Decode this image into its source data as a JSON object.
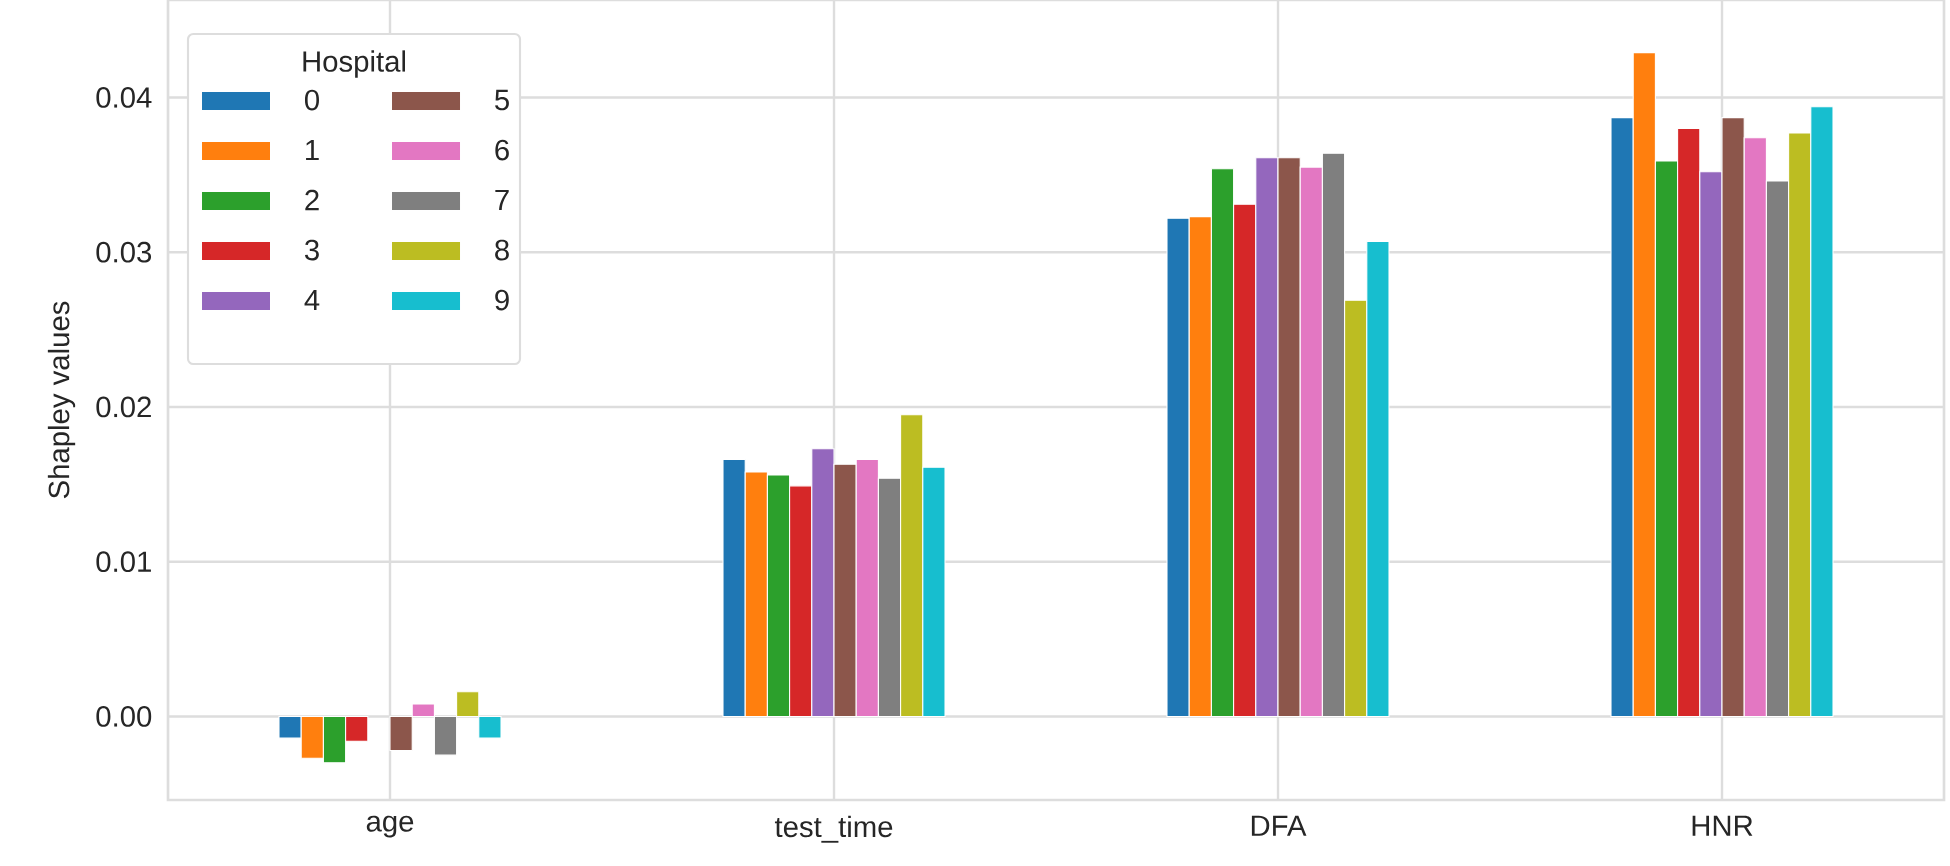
{
  "chart_data": {
    "type": "bar",
    "ylabel": "Shapley values",
    "legend_title": "Hospital",
    "categories": [
      "age",
      "test_time",
      "DFA",
      "HNR"
    ],
    "series": [
      {
        "name": "0",
        "color": "#1f77b4",
        "values": [
          -0.0014,
          0.0166,
          0.0322,
          0.0387
        ]
      },
      {
        "name": "1",
        "color": "#ff7f0e",
        "values": [
          -0.0027,
          0.0158,
          0.0323,
          0.0429
        ]
      },
      {
        "name": "2",
        "color": "#2ca02c",
        "values": [
          -0.003,
          0.0156,
          0.0354,
          0.0359
        ]
      },
      {
        "name": "3",
        "color": "#d62728",
        "values": [
          -0.0016,
          0.0149,
          0.0331,
          0.038
        ]
      },
      {
        "name": "4",
        "color": "#9467bd",
        "values": [
          null,
          0.0173,
          0.0361,
          0.0352
        ]
      },
      {
        "name": "5",
        "color": "#8c564b",
        "values": [
          -0.0022,
          0.0163,
          0.0361,
          0.0387
        ]
      },
      {
        "name": "6",
        "color": "#e377c2",
        "values": [
          0.0008,
          0.0166,
          0.0355,
          0.0374
        ]
      },
      {
        "name": "7",
        "color": "#7f7f7f",
        "values": [
          -0.0025,
          0.0154,
          0.0364,
          0.0346
        ]
      },
      {
        "name": "8",
        "color": "#bcbd22",
        "values": [
          0.0016,
          0.0195,
          0.0269,
          0.0377
        ]
      },
      {
        "name": "9",
        "color": "#17becf",
        "values": [
          -0.0014,
          0.0161,
          0.0307,
          0.0394
        ]
      }
    ],
    "ylim": [
      -0.0054,
      0.0463
    ],
    "yticks": [
      {
        "value": 0,
        "label": "0.00"
      },
      {
        "value": 0.01,
        "label": "0.01"
      },
      {
        "value": 0.02,
        "label": "0.02"
      },
      {
        "value": 0.03,
        "label": "0.03"
      },
      {
        "value": 0.04,
        "label": "0.04"
      }
    ],
    "grid": true,
    "legend": "top left"
  }
}
